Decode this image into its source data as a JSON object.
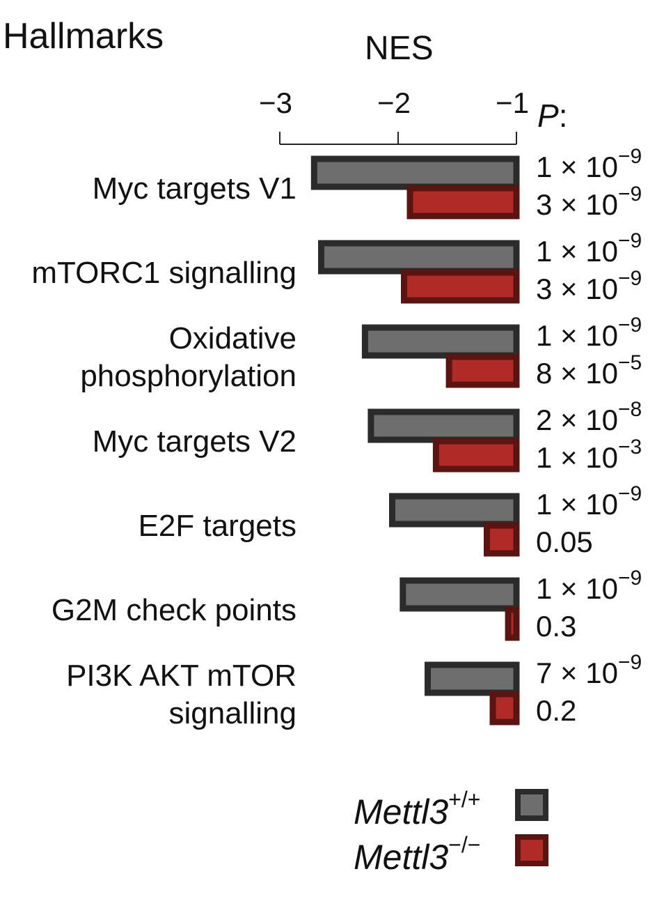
{
  "chart_data": {
    "type": "bar",
    "title": "Hallmarks",
    "xlabel": "NES",
    "p_header": "P",
    "p_header_suffix": ":",
    "xlim": [
      -3,
      -1
    ],
    "xticks": [
      {
        "value": -3,
        "label": "−3"
      },
      {
        "value": -2,
        "label": "−2"
      },
      {
        "value": -1,
        "label": "−1"
      }
    ],
    "categories": [
      [
        "Myc targets V1"
      ],
      [
        "mTORC1 signalling"
      ],
      [
        "Oxidative",
        "phosphorylation"
      ],
      [
        "Myc targets V2"
      ],
      [
        "E2F targets"
      ],
      [
        "G2M check points"
      ],
      [
        "PI3K AKT mTOR",
        "signalling"
      ]
    ],
    "series": [
      {
        "name": "Mettl3",
        "superscript": "+/+",
        "color": "#6e6e6e",
        "edge": "#2b2b2b",
        "values": [
          -2.71,
          -2.65,
          -2.28,
          -2.23,
          -2.05,
          -1.96,
          -1.75
        ],
        "p_values": [
          {
            "base": "1 × 10",
            "exp": "−9"
          },
          {
            "base": "1 × 10",
            "exp": "−9"
          },
          {
            "base": "1 × 10",
            "exp": "−9"
          },
          {
            "base": "2 × 10",
            "exp": "−8"
          },
          {
            "base": "1 × 10",
            "exp": "−9"
          },
          {
            "base": "1 × 10",
            "exp": "−9"
          },
          {
            "base": "7 × 10",
            "exp": "−9"
          }
        ]
      },
      {
        "name": "Mettl3",
        "superscript": "−/−",
        "color": "#b02a26",
        "edge": "#5a1412",
        "values": [
          -1.9,
          -1.95,
          -1.57,
          -1.68,
          -1.25,
          -1.07,
          -1.2
        ],
        "p_values": [
          {
            "base": "3 × 10",
            "exp": "−9"
          },
          {
            "base": "3 × 10",
            "exp": "−9"
          },
          {
            "base": "8 × 10",
            "exp": "−5"
          },
          {
            "base": "1 × 10",
            "exp": "−3"
          },
          {
            "base": "0.05",
            "exp": ""
          },
          {
            "base": "0.3",
            "exp": ""
          },
          {
            "base": "0.2",
            "exp": ""
          }
        ]
      }
    ],
    "legend_position": "bottom-right"
  }
}
